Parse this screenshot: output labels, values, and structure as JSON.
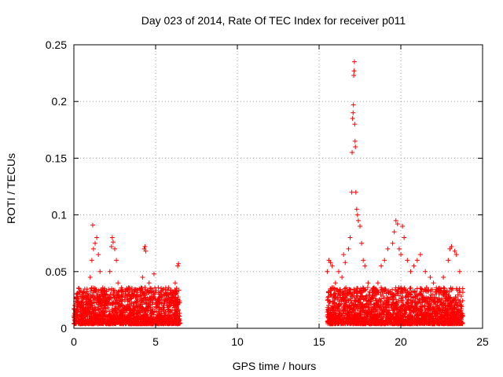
{
  "chart_data": {
    "type": "scatter",
    "title": "Day 023 of 2014, Rate Of TEC Index for receiver p011",
    "xlabel": "GPS time / hours",
    "ylabel": "ROTI / TECUs",
    "xlim": [
      0,
      25
    ],
    "ylim": [
      0,
      0.25
    ],
    "xticks": [
      0,
      5,
      10,
      15,
      20,
      25
    ],
    "xtick_labels": [
      "0",
      "5",
      "10",
      "15",
      "20",
      "25"
    ],
    "yticks": [
      0,
      0.05,
      0.1,
      0.15,
      0.2,
      0.25
    ],
    "ytick_labels": [
      "0",
      "0.05",
      "0.1",
      "0.15",
      "0.2",
      "0.25"
    ],
    "grid": true,
    "marker": "+",
    "marker_color": "#ff0000",
    "series": [
      {
        "name": "ROTI",
        "points": [
          [
            0.1,
            0.012
          ],
          [
            0.3,
            0.02
          ],
          [
            0.5,
            0.018
          ],
          [
            0.7,
            0.015
          ],
          [
            0.9,
            0.022
          ],
          [
            1.0,
            0.045
          ],
          [
            1.1,
            0.06
          ],
          [
            1.15,
            0.091
          ],
          [
            1.2,
            0.07
          ],
          [
            1.3,
            0.075
          ],
          [
            1.4,
            0.08
          ],
          [
            1.5,
            0.065
          ],
          [
            1.6,
            0.05
          ],
          [
            1.7,
            0.03
          ],
          [
            1.9,
            0.02
          ],
          [
            2.1,
            0.025
          ],
          [
            2.2,
            0.05
          ],
          [
            2.3,
            0.072
          ],
          [
            2.35,
            0.08
          ],
          [
            2.4,
            0.076
          ],
          [
            2.5,
            0.07
          ],
          [
            2.6,
            0.06
          ],
          [
            2.7,
            0.04
          ],
          [
            3.0,
            0.03
          ],
          [
            3.5,
            0.028
          ],
          [
            4.0,
            0.035
          ],
          [
            4.2,
            0.045
          ],
          [
            4.3,
            0.07
          ],
          [
            4.35,
            0.072
          ],
          [
            4.4,
            0.068
          ],
          [
            4.6,
            0.04
          ],
          [
            4.9,
            0.048
          ],
          [
            5.2,
            0.03
          ],
          [
            5.5,
            0.025
          ],
          [
            5.8,
            0.03
          ],
          [
            6.2,
            0.04
          ],
          [
            6.35,
            0.055
          ],
          [
            6.4,
            0.057
          ],
          [
            15.5,
            0.05
          ],
          [
            15.6,
            0.06
          ],
          [
            15.7,
            0.058
          ],
          [
            15.8,
            0.055
          ],
          [
            16.0,
            0.04
          ],
          [
            16.2,
            0.05
          ],
          [
            16.4,
            0.045
          ],
          [
            16.5,
            0.065
          ],
          [
            16.6,
            0.058
          ],
          [
            16.8,
            0.07
          ],
          [
            16.9,
            0.08
          ],
          [
            17.0,
            0.12
          ],
          [
            17.02,
            0.155
          ],
          [
            17.05,
            0.185
          ],
          [
            17.08,
            0.19
          ],
          [
            17.1,
            0.197
          ],
          [
            17.12,
            0.223
          ],
          [
            17.14,
            0.227
          ],
          [
            17.16,
            0.235
          ],
          [
            17.18,
            0.18
          ],
          [
            17.2,
            0.165
          ],
          [
            17.22,
            0.16
          ],
          [
            17.25,
            0.12
          ],
          [
            17.3,
            0.105
          ],
          [
            17.35,
            0.1
          ],
          [
            17.4,
            0.095
          ],
          [
            17.5,
            0.09
          ],
          [
            17.6,
            0.075
          ],
          [
            17.7,
            0.06
          ],
          [
            17.8,
            0.055
          ],
          [
            18.0,
            0.04
          ],
          [
            18.3,
            0.035
          ],
          [
            18.6,
            0.04
          ],
          [
            18.8,
            0.055
          ],
          [
            19.0,
            0.06
          ],
          [
            19.2,
            0.07
          ],
          [
            19.5,
            0.075
          ],
          [
            19.6,
            0.085
          ],
          [
            19.7,
            0.095
          ],
          [
            19.8,
            0.092
          ],
          [
            19.9,
            0.07
          ],
          [
            20.0,
            0.065
          ],
          [
            20.1,
            0.09
          ],
          [
            20.2,
            0.08
          ],
          [
            20.4,
            0.06
          ],
          [
            20.6,
            0.05
          ],
          [
            20.8,
            0.055
          ],
          [
            21.0,
            0.06
          ],
          [
            21.2,
            0.065
          ],
          [
            21.5,
            0.05
          ],
          [
            21.8,
            0.045
          ],
          [
            22.0,
            0.04
          ],
          [
            22.3,
            0.035
          ],
          [
            22.6,
            0.045
          ],
          [
            22.9,
            0.06
          ],
          [
            23.0,
            0.07
          ],
          [
            23.1,
            0.072
          ],
          [
            23.3,
            0.068
          ],
          [
            23.4,
            0.065
          ],
          [
            23.6,
            0.05
          ]
        ]
      }
    ]
  }
}
